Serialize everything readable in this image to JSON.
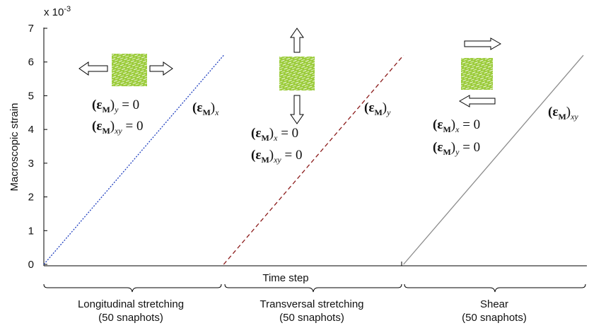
{
  "chart_data": {
    "type": "line",
    "y_label": "Macroscopic strain",
    "x_label": "Time step",
    "y_multiplier": {
      "base": "x 10",
      "exp": "-3"
    },
    "xlim": [
      0,
      150
    ],
    "ylim": [
      0,
      7
    ],
    "yticks": [
      0,
      1,
      2,
      3,
      4,
      5,
      6,
      7
    ],
    "series": [
      {
        "name": "(εM)x",
        "color": "#1f3fbf",
        "dash": "dotted",
        "x": [
          0,
          50
        ],
        "values": [
          0,
          6.2
        ]
      },
      {
        "name": "(εM)y",
        "color": "#8b1a1a",
        "dash": "dashed",
        "x": [
          50,
          100
        ],
        "values": [
          0,
          6.2
        ]
      },
      {
        "name": "(εM)xy",
        "color": "#8c8c8c",
        "dash": "solid",
        "x": [
          100,
          150
        ],
        "values": [
          0,
          6.2
        ]
      }
    ],
    "annotations": [
      [
        {
          "t": "(ε"
        },
        {
          "t": "M",
          "sub": true
        },
        {
          "t": ")"
        },
        {
          "t": "y",
          "sub": true
        },
        {
          "t": " = 0"
        }
      ],
      [
        {
          "t": "(ε"
        },
        {
          "t": "M",
          "sub": true
        },
        {
          "t": ")"
        },
        {
          "t": "xy",
          "sub": true
        },
        {
          "t": " = 0"
        }
      ],
      [
        {
          "t": "(ε"
        },
        {
          "t": "M",
          "sub": true
        },
        {
          "t": ")"
        },
        {
          "t": "x",
          "sub": true
        }
      ],
      [
        {
          "t": "(ε"
        },
        {
          "t": "M",
          "sub": true
        },
        {
          "t": ")"
        },
        {
          "t": "y",
          "sub": true
        }
      ],
      [
        {
          "t": "(ε"
        },
        {
          "t": "M",
          "sub": true
        },
        {
          "t": ")"
        },
        {
          "t": "x",
          "sub": true
        },
        {
          "t": " = 0"
        }
      ],
      [
        {
          "t": "(ε"
        },
        {
          "t": "M",
          "sub": true
        },
        {
          "t": ")"
        },
        {
          "t": "xy",
          "sub": true
        },
        {
          "t": " = 0"
        }
      ],
      [
        {
          "t": "(ε"
        },
        {
          "t": "M",
          "sub": true
        },
        {
          "t": ")"
        },
        {
          "t": "xy",
          "sub": true
        }
      ],
      [
        {
          "t": "(ε"
        },
        {
          "t": "M",
          "sub": true
        },
        {
          "t": ")"
        },
        {
          "t": "x",
          "sub": true
        },
        {
          "t": " = 0"
        }
      ],
      [
        {
          "t": "(ε"
        },
        {
          "t": "M",
          "sub": true
        },
        {
          "t": ")"
        },
        {
          "t": "y",
          "sub": true
        },
        {
          "t": " = 0"
        }
      ]
    ],
    "groups": [
      {
        "label": "Longitudinal  stretching",
        "note": "(50 snaphots)"
      },
      {
        "label": "Transversal stretching",
        "note": "(50 snaphots)"
      },
      {
        "label": "Shear",
        "note": "(50 snaphots)"
      }
    ]
  }
}
